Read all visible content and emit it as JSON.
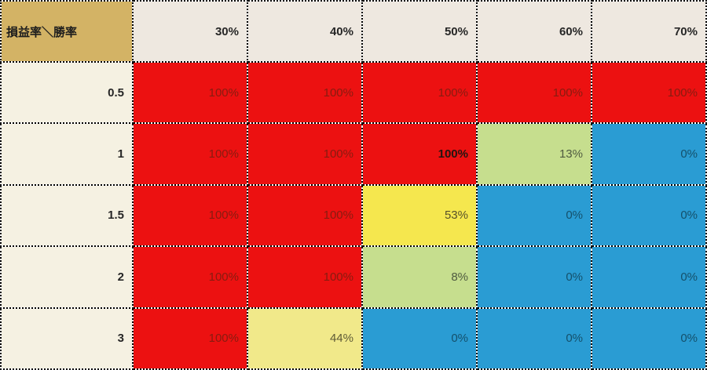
{
  "table": {
    "corner_label": "損益率＼勝率",
    "column_headers": [
      "30%",
      "40%",
      "50%",
      "60%",
      "70%"
    ],
    "row_headers": [
      "0.5",
      "1",
      "1.5",
      "2",
      "3"
    ],
    "cells": [
      [
        {
          "label": "100%",
          "color": "red"
        },
        {
          "label": "100%",
          "color": "red"
        },
        {
          "label": "100%",
          "color": "red"
        },
        {
          "label": "100%",
          "color": "red"
        },
        {
          "label": "100%",
          "color": "red"
        }
      ],
      [
        {
          "label": "100%",
          "color": "red"
        },
        {
          "label": "100%",
          "color": "red"
        },
        {
          "label": "100%",
          "color": "red",
          "bold": true
        },
        {
          "label": "13%",
          "color": "green"
        },
        {
          "label": "0%",
          "color": "blue"
        }
      ],
      [
        {
          "label": "100%",
          "color": "red"
        },
        {
          "label": "100%",
          "color": "red"
        },
        {
          "label": "53%",
          "color": "yellow"
        },
        {
          "label": "0%",
          "color": "blue"
        },
        {
          "label": "0%",
          "color": "blue"
        }
      ],
      [
        {
          "label": "100%",
          "color": "red"
        },
        {
          "label": "100%",
          "color": "red"
        },
        {
          "label": "8%",
          "color": "green"
        },
        {
          "label": "0%",
          "color": "blue"
        },
        {
          "label": "0%",
          "color": "blue"
        }
      ],
      [
        {
          "label": "100%",
          "color": "red"
        },
        {
          "label": "44%",
          "color": "pale_yellow"
        },
        {
          "label": "0%",
          "color": "blue"
        },
        {
          "label": "0%",
          "color": "blue"
        },
        {
          "label": "0%",
          "color": "blue"
        }
      ]
    ]
  },
  "palette": {
    "red": "#EC1111",
    "green": "#C6DE8E",
    "yellow": "#F5E74E",
    "pale_yellow": "#F1E98A",
    "blue": "#2A9CD3",
    "corner_bg": "#D3B365",
    "header_bg": "#EEE8E0",
    "row_label_bg": "#F5F1E2",
    "border": "#000000"
  },
  "chart_data": {
    "type": "heatmap",
    "corner_label": "損益率＼勝率",
    "columns": [
      "30%",
      "40%",
      "50%",
      "60%",
      "70%"
    ],
    "rows": [
      "0.5",
      "1",
      "1.5",
      "2",
      "3"
    ],
    "values_percent": [
      [
        100,
        100,
        100,
        100,
        100
      ],
      [
        100,
        100,
        100,
        13,
        0
      ],
      [
        100,
        100,
        53,
        0,
        0
      ],
      [
        100,
        100,
        8,
        0,
        0
      ],
      [
        100,
        44,
        0,
        0,
        0
      ]
    ],
    "cell_colors": [
      [
        "red",
        "red",
        "red",
        "red",
        "red"
      ],
      [
        "red",
        "red",
        "red",
        "green",
        "blue"
      ],
      [
        "red",
        "red",
        "yellow",
        "blue",
        "blue"
      ],
      [
        "red",
        "red",
        "green",
        "blue",
        "blue"
      ],
      [
        "red",
        "pale_yellow",
        "blue",
        "blue",
        "blue"
      ]
    ],
    "emphasized_cell": {
      "row": "1",
      "column": "50%",
      "value_percent": 100
    },
    "legend": "none",
    "grid": "dotted"
  }
}
